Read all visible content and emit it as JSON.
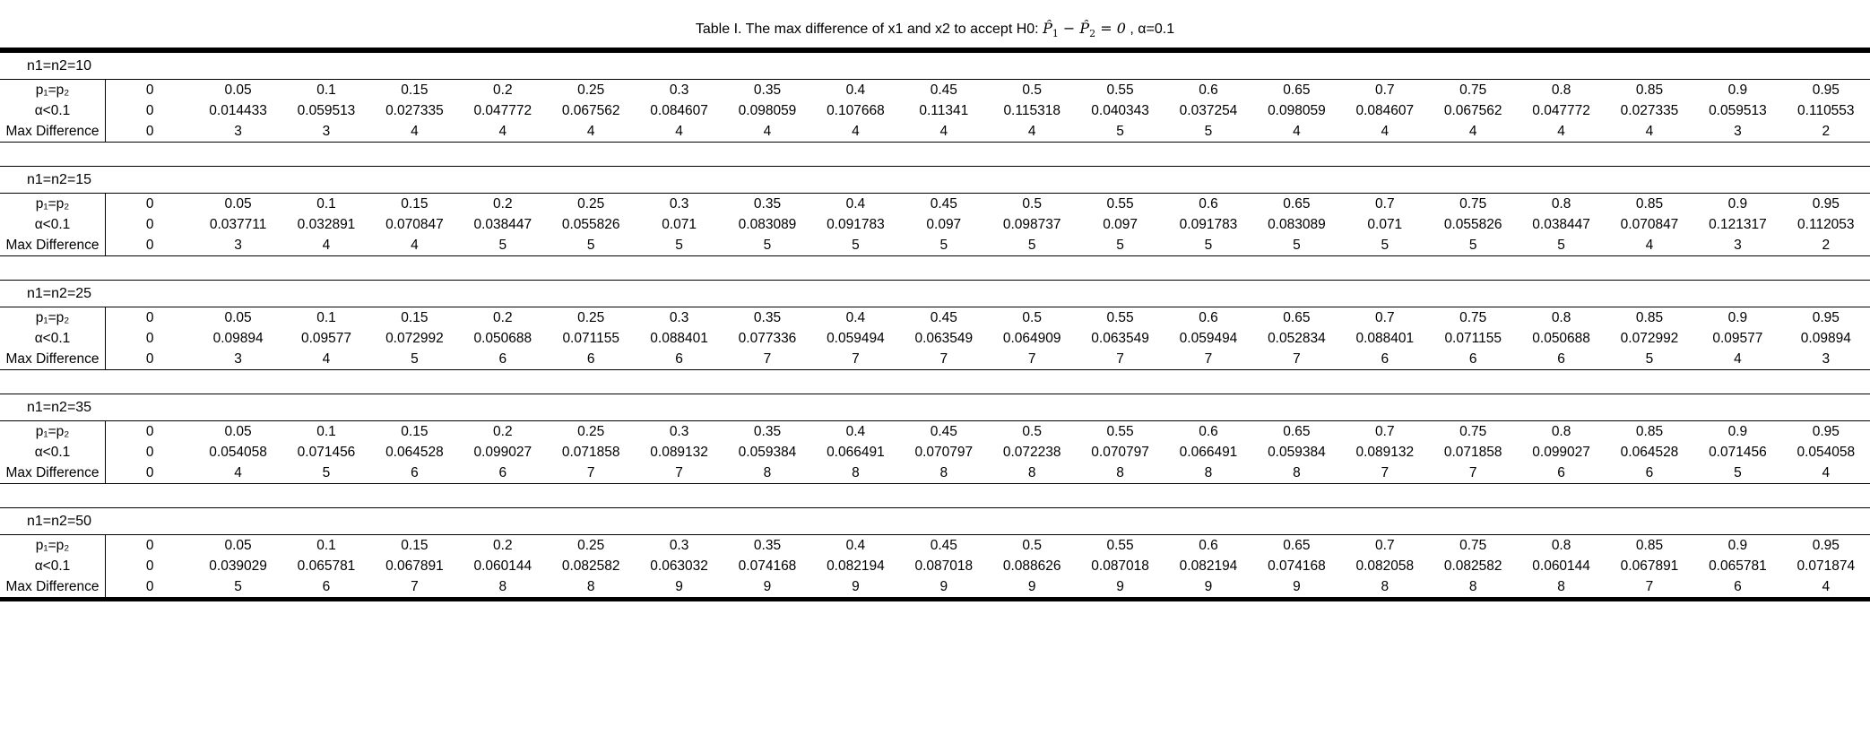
{
  "title": {
    "prefix": "Table I. The max difference of x1 and x2 to accept H0: ",
    "math": {
      "p1": "P̂",
      "sub1": "1",
      "minus": " − ",
      "p2": "P̂",
      "sub2": "2",
      "eq": " = 0"
    },
    "suffix": " , α=0.1"
  },
  "row_labels": {
    "p": "p₁=p₂",
    "alpha": "α<0.1",
    "max": "Max Difference"
  },
  "columns": [
    "0",
    "0.05",
    "0.1",
    "0.15",
    "0.2",
    "0.25",
    "0.3",
    "0.35",
    "0.4",
    "0.45",
    "0.5",
    "0.55",
    "0.6",
    "0.65",
    "0.7",
    "0.75",
    "0.8",
    "0.85",
    "0.9",
    "0.95"
  ],
  "sections": [
    {
      "label": "n1=n2=10",
      "alpha": [
        "0",
        "0.014433",
        "0.059513",
        "0.027335",
        "0.047772",
        "0.067562",
        "0.084607",
        "0.098059",
        "0.107668",
        "0.11341",
        "0.115318",
        "0.040343",
        "0.037254",
        "0.098059",
        "0.084607",
        "0.067562",
        "0.047772",
        "0.027335",
        "0.059513",
        "0.110553"
      ],
      "max_difference": [
        "0",
        "3",
        "3",
        "4",
        "4",
        "4",
        "4",
        "4",
        "4",
        "4",
        "4",
        "5",
        "5",
        "4",
        "4",
        "4",
        "4",
        "4",
        "3",
        "2"
      ]
    },
    {
      "label": "n1=n2=15",
      "alpha": [
        "0",
        "0.037711",
        "0.032891",
        "0.070847",
        "0.038447",
        "0.055826",
        "0.071",
        "0.083089",
        "0.091783",
        "0.097",
        "0.098737",
        "0.097",
        "0.091783",
        "0.083089",
        "0.071",
        "0.055826",
        "0.038447",
        "0.070847",
        "0.121317",
        "0.112053"
      ],
      "max_difference": [
        "0",
        "3",
        "4",
        "4",
        "5",
        "5",
        "5",
        "5",
        "5",
        "5",
        "5",
        "5",
        "5",
        "5",
        "5",
        "5",
        "5",
        "4",
        "3",
        "2"
      ]
    },
    {
      "label": "n1=n2=25",
      "alpha": [
        "0",
        "0.09894",
        "0.09577",
        "0.072992",
        "0.050688",
        "0.071155",
        "0.088401",
        "0.077336",
        "0.059494",
        "0.063549",
        "0.064909",
        "0.063549",
        "0.059494",
        "0.052834",
        "0.088401",
        "0.071155",
        "0.050688",
        "0.072992",
        "0.09577",
        "0.09894"
      ],
      "max_difference": [
        "0",
        "3",
        "4",
        "5",
        "6",
        "6",
        "6",
        "7",
        "7",
        "7",
        "7",
        "7",
        "7",
        "7",
        "6",
        "6",
        "6",
        "5",
        "4",
        "3"
      ]
    },
    {
      "label": "n1=n2=35",
      "alpha": [
        "0",
        "0.054058",
        "0.071456",
        "0.064528",
        "0.099027",
        "0.071858",
        "0.089132",
        "0.059384",
        "0.066491",
        "0.070797",
        "0.072238",
        "0.070797",
        "0.066491",
        "0.059384",
        "0.089132",
        "0.071858",
        "0.099027",
        "0.064528",
        "0.071456",
        "0.054058"
      ],
      "max_difference": [
        "0",
        "4",
        "5",
        "6",
        "6",
        "7",
        "7",
        "8",
        "8",
        "8",
        "8",
        "8",
        "8",
        "8",
        "7",
        "7",
        "6",
        "6",
        "5",
        "4"
      ]
    },
    {
      "label": "n1=n2=50",
      "alpha": [
        "0",
        "0.039029",
        "0.065781",
        "0.067891",
        "0.060144",
        "0.082582",
        "0.063032",
        "0.074168",
        "0.082194",
        "0.087018",
        "0.088626",
        "0.087018",
        "0.082194",
        "0.074168",
        "0.082058",
        "0.082582",
        "0.060144",
        "0.067891",
        "0.065781",
        "0.071874"
      ],
      "max_difference": [
        "0",
        "5",
        "6",
        "7",
        "8",
        "8",
        "9",
        "9",
        "9",
        "9",
        "9",
        "9",
        "9",
        "9",
        "8",
        "8",
        "8",
        "7",
        "6",
        "4"
      ]
    }
  ]
}
